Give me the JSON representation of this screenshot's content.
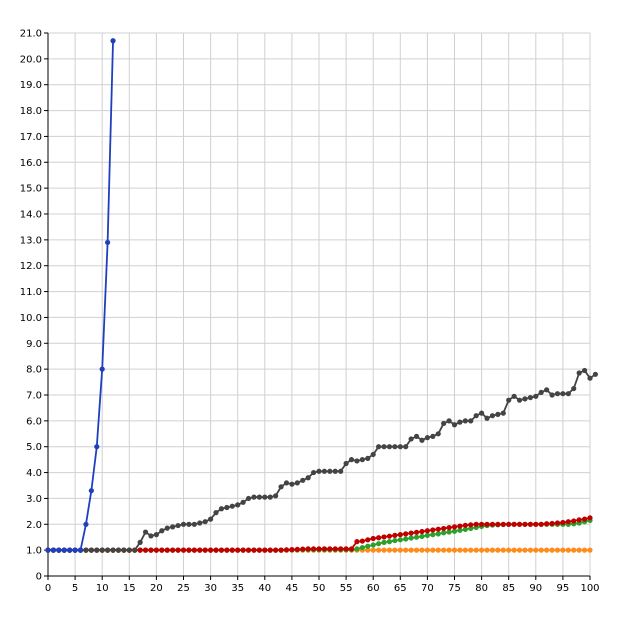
{
  "chart_data": {
    "type": "line",
    "xlim": [
      0,
      100
    ],
    "ylim": [
      0,
      21
    ],
    "x_ticks": [
      "0",
      "5",
      "10",
      "15",
      "20",
      "25",
      "30",
      "35",
      "40",
      "45",
      "50",
      "55",
      "60",
      "65",
      "70",
      "75",
      "80",
      "85",
      "90",
      "95",
      "100"
    ],
    "y_ticks": [
      "0",
      "1.0",
      "2.0",
      "3.0",
      "4.0",
      "5.0",
      "6.0",
      "7.0",
      "8.0",
      "9.0",
      "10.0",
      "11.0",
      "12.0",
      "13.0",
      "14.0",
      "15.0",
      "16.0",
      "17.0",
      "18.0",
      "19.0",
      "20.0",
      "21.0"
    ],
    "grid": true,
    "series": [
      {
        "color": "#ff8c1a",
        "x_start": 0,
        "values": [
          1,
          1,
          1,
          1,
          1,
          1,
          1,
          1,
          1,
          1,
          1,
          1,
          1,
          1,
          1,
          1,
          1,
          1,
          1,
          1,
          1,
          1,
          1,
          1,
          1,
          1,
          1,
          1,
          1,
          1,
          1,
          1,
          1,
          1,
          1,
          1,
          1,
          1,
          1,
          1,
          1,
          1,
          1,
          1,
          1,
          1,
          1,
          1,
          1,
          1,
          1,
          1,
          1,
          1,
          1,
          1,
          1,
          1,
          1,
          1,
          1,
          1,
          1,
          1,
          1,
          1,
          1,
          1,
          1,
          1,
          1,
          1,
          1,
          1,
          1,
          1,
          1,
          1,
          1,
          1,
          1,
          1,
          1,
          1,
          1,
          1,
          1,
          1,
          1,
          1,
          1,
          1,
          1,
          1,
          1,
          1,
          1,
          1,
          1,
          1,
          1
        ]
      },
      {
        "color": "#2ca02c",
        "x_start": 0,
        "values": [
          1,
          1,
          1,
          1,
          1,
          1,
          1,
          1,
          1,
          1,
          1,
          1,
          1,
          1,
          1,
          1,
          1,
          1,
          1,
          1,
          1,
          1,
          1,
          1,
          1,
          1,
          1,
          1,
          1,
          1,
          1,
          1,
          1,
          1,
          1,
          1,
          1,
          1,
          1,
          1,
          1,
          1,
          1,
          1,
          1.01,
          1.01,
          1.01,
          1.02,
          1.02,
          1.02,
          1.02,
          1.02,
          1.02,
          1.02,
          1.02,
          1.02,
          1.02,
          1.05,
          1.1,
          1.15,
          1.2,
          1.25,
          1.3,
          1.33,
          1.37,
          1.4,
          1.43,
          1.47,
          1.5,
          1.53,
          1.57,
          1.6,
          1.63,
          1.67,
          1.7,
          1.73,
          1.77,
          1.8,
          1.84,
          1.88,
          1.92,
          1.95,
          1.97,
          1.98,
          1.99,
          2,
          2,
          2,
          2,
          2,
          2,
          2,
          2,
          2,
          2,
          2,
          2,
          2.02,
          2.05,
          2.1,
          2.15
        ]
      },
      {
        "color": "#c00000",
        "x_start": 0,
        "values": [
          1,
          1,
          1,
          1,
          1,
          1,
          1,
          1,
          1,
          1,
          1,
          1,
          1,
          1,
          1,
          1,
          1,
          1,
          1,
          1,
          1,
          1,
          1,
          1,
          1,
          1,
          1,
          1,
          1,
          1,
          1,
          1,
          1,
          1,
          1,
          1,
          1,
          1,
          1,
          1,
          1,
          1,
          1,
          1,
          1.01,
          1.02,
          1.03,
          1.04,
          1.05,
          1.05,
          1.05,
          1.05,
          1.05,
          1.05,
          1.05,
          1.05,
          1.05,
          1.33,
          1.35,
          1.4,
          1.45,
          1.48,
          1.51,
          1.54,
          1.57,
          1.6,
          1.63,
          1.66,
          1.69,
          1.72,
          1.75,
          1.78,
          1.81,
          1.84,
          1.87,
          1.9,
          1.93,
          1.96,
          1.98,
          2,
          2,
          2,
          2,
          2,
          2,
          2,
          2,
          2,
          2,
          2,
          2,
          2,
          2.02,
          2.03,
          2.05,
          2.07,
          2.1,
          2.13,
          2.17,
          2.2,
          2.25
        ]
      },
      {
        "color": "#444444",
        "x_start": 0,
        "values": [
          1,
          1,
          1,
          1,
          1,
          1,
          1,
          1,
          1,
          1,
          1,
          1,
          1,
          1,
          1,
          1,
          1,
          1.3,
          1.7,
          1.55,
          1.6,
          1.75,
          1.85,
          1.9,
          1.95,
          2,
          2,
          2,
          2.05,
          2.1,
          2.2,
          2.45,
          2.6,
          2.65,
          2.7,
          2.75,
          2.85,
          3,
          3.05,
          3.05,
          3.05,
          3.05,
          3.1,
          3.45,
          3.6,
          3.55,
          3.6,
          3.7,
          3.8,
          4,
          4.05,
          4.05,
          4.05,
          4.05,
          4.05,
          4.35,
          4.5,
          4.45,
          4.5,
          4.55,
          4.7,
          5,
          5,
          5,
          5,
          5,
          5,
          5.3,
          5.4,
          5.25,
          5.35,
          5.4,
          5.5,
          5.9,
          6,
          5.85,
          5.95,
          6,
          6,
          6.2,
          6.3,
          6.1,
          6.2,
          6.25,
          6.3,
          6.8,
          6.95,
          6.8,
          6.85,
          6.9,
          6.95,
          7.1,
          7.2,
          7,
          7.05,
          7.05,
          7.05,
          7.25,
          7.85,
          7.95,
          7.65,
          7.8
        ]
      },
      {
        "color": "#1f3fbf",
        "x_start": 0,
        "values": [
          1,
          1,
          1,
          1,
          1,
          1,
          1,
          2,
          3.3,
          5,
          8,
          12.9,
          20.7
        ]
      }
    ]
  }
}
